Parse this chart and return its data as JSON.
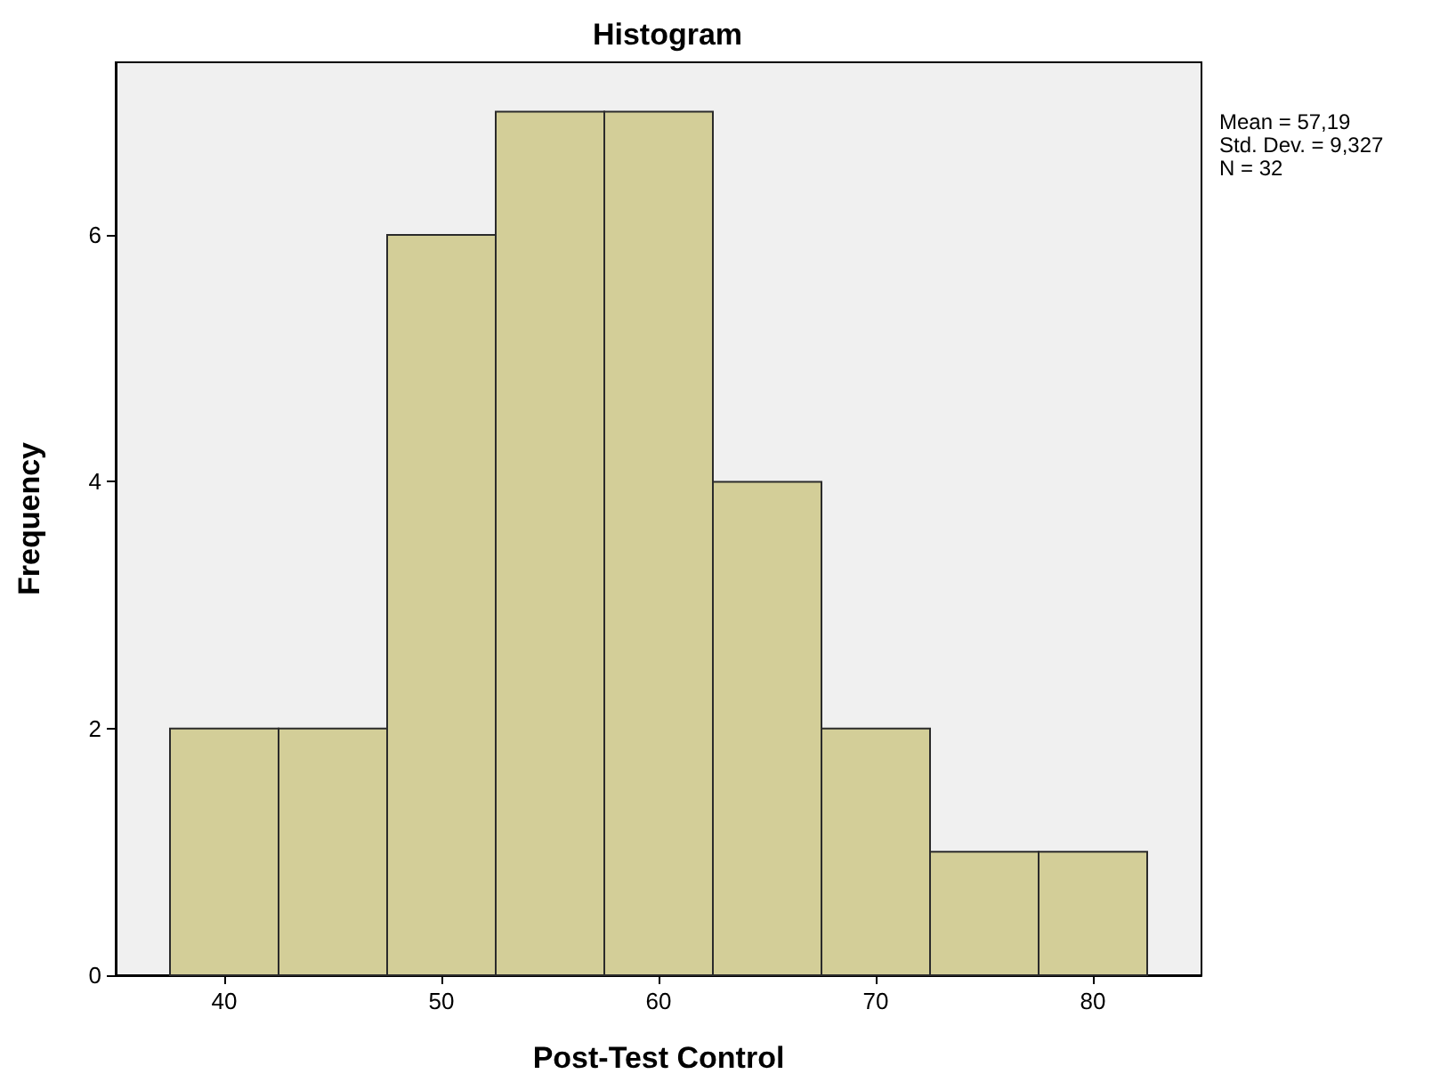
{
  "chart_data": {
    "type": "histogram",
    "title": "Histogram",
    "xlabel": "Post-Test Control",
    "ylabel": "Frequency",
    "bins": [
      37.5,
      42.5,
      47.5,
      52.5,
      57.5,
      62.5,
      67.5,
      72.5,
      77.5,
      82.5
    ],
    "values": [
      2,
      2,
      6,
      7,
      7,
      4,
      2,
      1,
      1
    ],
    "color": "#d3ce98",
    "xlim": [
      35,
      85
    ],
    "xticks": [
      40,
      50,
      60,
      70,
      80
    ],
    "ylim": [
      0,
      7.4
    ],
    "yticks": [
      0,
      2,
      4,
      6
    ],
    "annotations": [
      "Mean = 57,19",
      "Std. Dev. = 9,327",
      "N = 32"
    ]
  }
}
